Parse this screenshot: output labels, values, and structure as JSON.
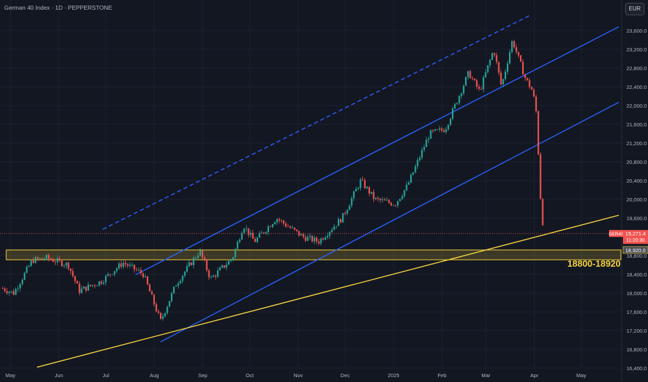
{
  "header": {
    "title": "German 40 Index · 1D · PEPPERSTONE"
  },
  "currency_button": "EUR",
  "price_tags": {
    "symbol": "GER40",
    "price": "19,271.4",
    "countdown": "11:20:30",
    "zone_top": "18,920.0"
  },
  "zone_label": "18800-18920",
  "colors": {
    "background": "#131722",
    "up": "#26a69a",
    "down": "#ef5350",
    "channel": "#2962ff",
    "trendline": "#f5d33f",
    "grid": "#1c2030",
    "axis_text": "#b2b5be"
  },
  "chart_data": {
    "type": "candlestick",
    "title": "German 40 Index · 1D · PEPPERSTONE",
    "x_axis_labels": [
      "May",
      "Jun",
      "Jul",
      "Aug",
      "Sep",
      "Oct",
      "Nov",
      "Dec",
      "2025",
      "Feb",
      "Mar",
      "Apr",
      "May"
    ],
    "y_axis_labels": [
      "23,600.0",
      "23,200.0",
      "22,800.0",
      "22,400.0",
      "22,000.0",
      "21,600.0",
      "21,200.0",
      "20,800.0",
      "20,400.0",
      "20,000.0",
      "19,600.0",
      "18,800.0",
      "18,400.0",
      "18,000.0",
      "17,600.0",
      "17,200.0",
      "16,800.0",
      "16,400.0"
    ],
    "ylim": [
      16400,
      23900
    ],
    "price_series_anchors": [
      {
        "date": "2024-04-26",
        "close": 18100
      },
      {
        "date": "2024-05-03",
        "close": 18000
      },
      {
        "date": "2024-05-15",
        "close": 18700
      },
      {
        "date": "2024-05-24",
        "close": 18750
      },
      {
        "date": "2024-06-07",
        "close": 18600
      },
      {
        "date": "2024-06-14",
        "close": 18050
      },
      {
        "date": "2024-06-28",
        "close": 18250
      },
      {
        "date": "2024-07-12",
        "close": 18650
      },
      {
        "date": "2024-07-25",
        "close": 18400
      },
      {
        "date": "2024-08-05",
        "close": 17400
      },
      {
        "date": "2024-08-15",
        "close": 18200
      },
      {
        "date": "2024-08-30",
        "close": 18900
      },
      {
        "date": "2024-09-06",
        "close": 18300
      },
      {
        "date": "2024-09-20",
        "close": 18750
      },
      {
        "date": "2024-09-27",
        "close": 19450
      },
      {
        "date": "2024-10-04",
        "close": 19100
      },
      {
        "date": "2024-10-18",
        "close": 19600
      },
      {
        "date": "2024-11-04",
        "close": 19200
      },
      {
        "date": "2024-11-14",
        "close": 19100
      },
      {
        "date": "2024-11-29",
        "close": 19600
      },
      {
        "date": "2024-12-11",
        "close": 20400
      },
      {
        "date": "2024-12-20",
        "close": 20000
      },
      {
        "date": "2025-01-02",
        "close": 19900
      },
      {
        "date": "2025-01-10",
        "close": 20300
      },
      {
        "date": "2025-01-24",
        "close": 21400
      },
      {
        "date": "2025-02-03",
        "close": 21500
      },
      {
        "date": "2025-02-18",
        "close": 22700
      },
      {
        "date": "2025-02-25",
        "close": 22300
      },
      {
        "date": "2025-03-06",
        "close": 23200
      },
      {
        "date": "2025-03-11",
        "close": 22400
      },
      {
        "date": "2025-03-18",
        "close": 23400
      },
      {
        "date": "2025-03-26",
        "close": 22600
      },
      {
        "date": "2025-03-31",
        "close": 22300
      },
      {
        "date": "2025-04-03",
        "close": 21700
      },
      {
        "date": "2025-04-04",
        "close": 20400
      },
      {
        "date": "2025-04-07",
        "close": 19271.4
      }
    ],
    "support_zone": {
      "low": 18800,
      "high": 18920,
      "label": "18800-18920"
    },
    "last_price": 19271.4
  }
}
